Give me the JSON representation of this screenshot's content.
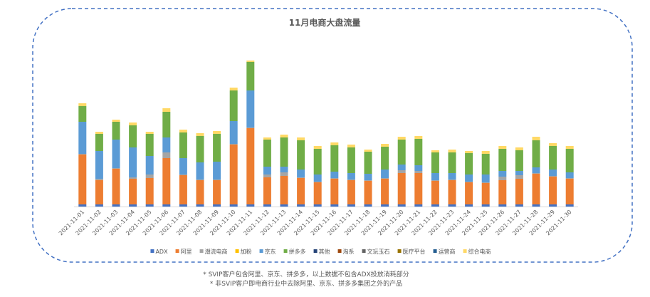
{
  "chart_data": {
    "type": "stacked_bar",
    "title": "11月电商大盘流量",
    "categories": [
      "2021-11-01",
      "2021-11-02",
      "2021-11-03",
      "2021-11-04",
      "2021-11-05",
      "2021-11-06",
      "2021-11-07",
      "2021-11-08",
      "2021-11-09",
      "2021-11-10",
      "2021-11-11",
      "2021-11-12",
      "2021-11-13",
      "2021-11-14",
      "2021-11-15",
      "2021-11-16",
      "2021-11-17",
      "2021-11-18",
      "2021-11-19",
      "2021-11-20",
      "2021-11-21",
      "2021-11-22",
      "2021-11-23",
      "2021-11-24",
      "2021-11-25",
      "2021-11-26",
      "2021-11-27",
      "2021-11-28",
      "2021-11-29",
      "2021-11-30"
    ],
    "series": [
      {
        "name": "ADX",
        "color": "#4472c4",
        "values": [
          3,
          3,
          3,
          3,
          3,
          3,
          3,
          3,
          3,
          3,
          3,
          3,
          3,
          3,
          3,
          3,
          3,
          3,
          3,
          3,
          3,
          3,
          3,
          3,
          3,
          3,
          3,
          3,
          3,
          3
        ]
      },
      {
        "name": "阿里",
        "color": "#ed7d31",
        "values": [
          70,
          34,
          50,
          36,
          37,
          65,
          41,
          34,
          34,
          84,
          107,
          38,
          40,
          37,
          31,
          36,
          34,
          33,
          36,
          44,
          44,
          33,
          34,
          31,
          30,
          34,
          36,
          43,
          39,
          36
        ]
      },
      {
        "name": "潮流电商",
        "color": "#a5a5a5",
        "values": [
          1,
          2,
          1,
          2,
          5,
          8,
          1,
          1,
          1,
          1,
          1,
          4,
          5,
          1,
          1,
          1,
          1,
          1,
          1,
          4,
          3,
          1,
          1,
          1,
          1,
          5,
          5,
          1,
          1,
          1
        ]
      },
      {
        "name": "加粉",
        "color": "#ffc000",
        "values": [
          0,
          0,
          0,
          0,
          0,
          0,
          0,
          0,
          0,
          0,
          0,
          0,
          0,
          0,
          0,
          0,
          0,
          0,
          0,
          0,
          0,
          0,
          0,
          0,
          0,
          0,
          0,
          0,
          0,
          0
        ]
      },
      {
        "name": "京东",
        "color": "#5b9bd5",
        "values": [
          45,
          39,
          40,
          42,
          26,
          21,
          23,
          24,
          25,
          32,
          52,
          11,
          8,
          11,
          10,
          9,
          9,
          9,
          12,
          8,
          8,
          10,
          9,
          10,
          11,
          8,
          6,
          8,
          9,
          8
        ]
      },
      {
        "name": "拼多多",
        "color": "#70ad47",
        "values": [
          22,
          24,
          25,
          31,
          31,
          36,
          36,
          37,
          39,
          43,
          40,
          38,
          41,
          41,
          36,
          37,
          36,
          31,
          32,
          35,
          37,
          29,
          29,
          30,
          29,
          31,
          29,
          38,
          33,
          33
        ]
      },
      {
        "name": "其他",
        "color": "#264478",
        "values": [
          0,
          0,
          0,
          0,
          0,
          0,
          0,
          0,
          0,
          0,
          0,
          0,
          0,
          0,
          0,
          0,
          0,
          0,
          0,
          0,
          0,
          0,
          0,
          0,
          0,
          0,
          0,
          0,
          0,
          0
        ]
      },
      {
        "name": "淘系",
        "color": "#9e480e",
        "values": [
          0,
          0,
          0,
          0,
          0,
          0,
          0,
          0,
          0,
          0,
          0,
          0,
          0,
          0,
          0,
          0,
          0,
          0,
          0,
          0,
          0,
          0,
          0,
          0,
          0,
          0,
          0,
          0,
          0,
          0
        ]
      },
      {
        "name": "文玩玉石",
        "color": "#636363",
        "values": [
          0,
          0,
          0,
          0,
          0,
          0,
          0,
          0,
          0,
          0,
          0,
          0,
          0,
          0,
          0,
          0,
          0,
          0,
          0,
          0,
          0,
          0,
          0,
          0,
          0,
          0,
          0,
          0,
          0,
          0
        ]
      },
      {
        "name": "医疗平台",
        "color": "#997300",
        "values": [
          0,
          0,
          0,
          0,
          0,
          0,
          0,
          0,
          0,
          0,
          0,
          0,
          0,
          0,
          0,
          0,
          0,
          0,
          0,
          0,
          0,
          0,
          0,
          0,
          0,
          0,
          0,
          0,
          0,
          0
        ]
      },
      {
        "name": "运营商",
        "color": "#255e91",
        "values": [
          0,
          0,
          0,
          0,
          0,
          0,
          0,
          0,
          0,
          0,
          0,
          0,
          0,
          0,
          0,
          0,
          0,
          0,
          0,
          0,
          0,
          0,
          0,
          0,
          0,
          0,
          0,
          0,
          0,
          0
        ]
      },
      {
        "name": "综合电商",
        "color": "#ffd966",
        "values": [
          4,
          3,
          3,
          4,
          3,
          5,
          4,
          4,
          4,
          4,
          2,
          3,
          4,
          4,
          4,
          4,
          4,
          3,
          4,
          4,
          4,
          3,
          4,
          3,
          4,
          4,
          4,
          5,
          4,
          4
        ]
      }
    ],
    "notes": [
      "* SVIP客户包含阿里、京东、拼多多，以上数据不包含ADX投放消耗部分",
      "* 非SVIP客户即电商行业中去除阿里、京东、拼多多集团之外的产品"
    ]
  }
}
